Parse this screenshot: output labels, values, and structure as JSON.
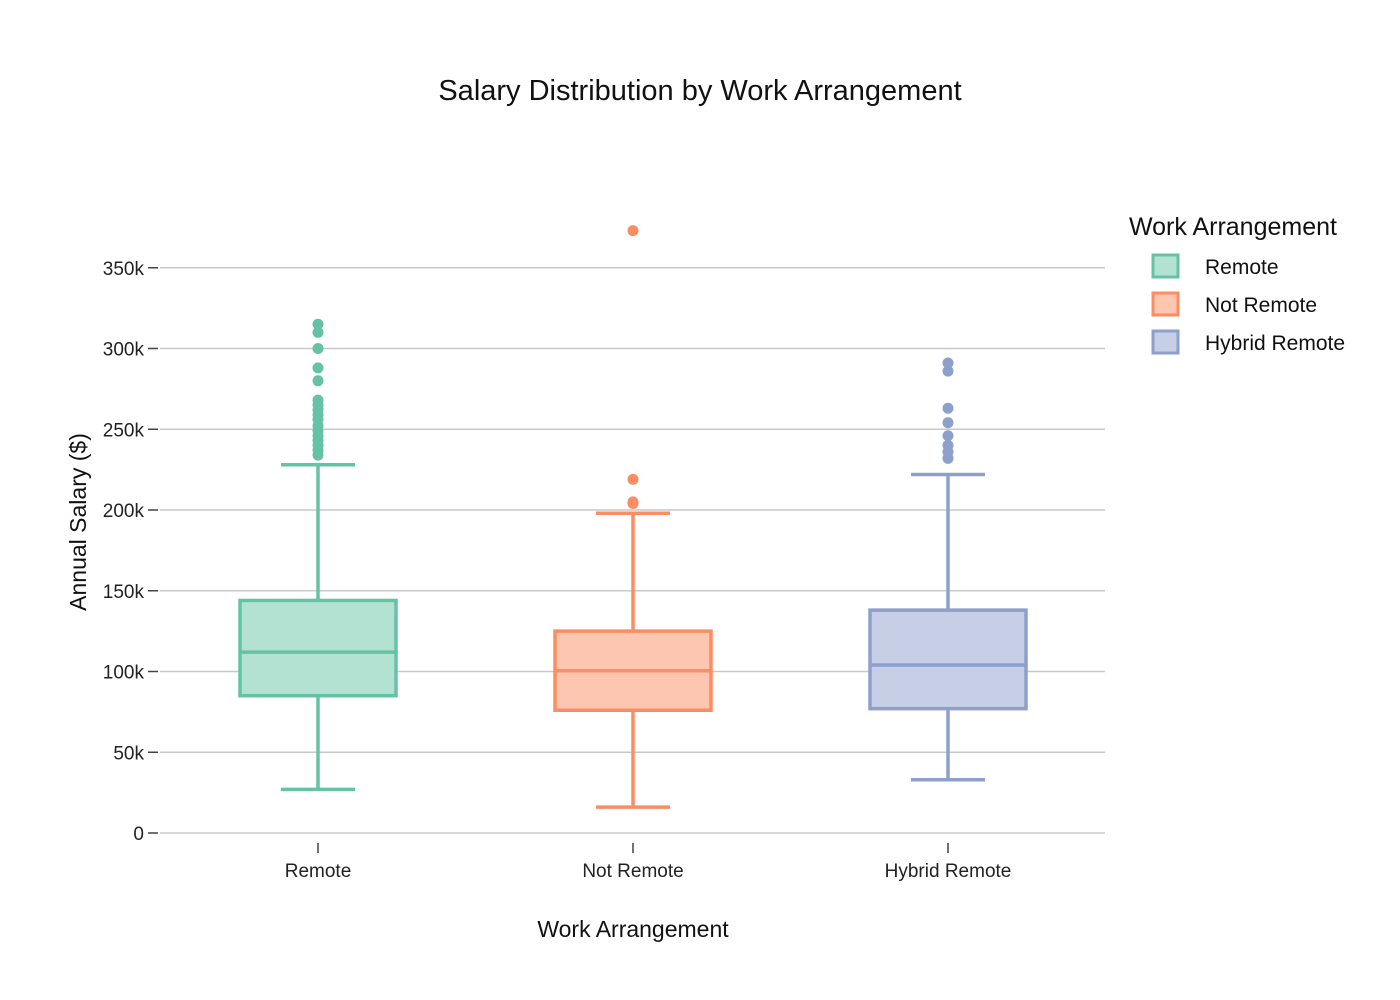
{
  "chart_data": {
    "type": "box",
    "title": "Salary Distribution by Work Arrangement",
    "xlabel": "Work Arrangement",
    "ylabel": "Annual Salary ($)",
    "ylim": [
      0,
      375000
    ],
    "yticks": [
      0,
      50000,
      100000,
      150000,
      200000,
      250000,
      300000,
      350000
    ],
    "ytick_labels": [
      "0",
      "50k",
      "100k",
      "150k",
      "200k",
      "250k",
      "300k",
      "350k"
    ],
    "grid": true,
    "legend": {
      "title": "Work Arrangement",
      "placement": "top-right"
    },
    "categories": [
      "Remote",
      "Not Remote",
      "Hybrid Remote"
    ],
    "series": [
      {
        "name": "Remote",
        "color": "#66c2a5",
        "fill": "#b3e1d2",
        "whisker_low": 27000,
        "q1": 85000,
        "median": 112000,
        "q3": 144000,
        "whisker_high": 228000,
        "outliers": [
          234000,
          237000,
          240000,
          243000,
          246000,
          249000,
          252000,
          256000,
          259000,
          262000,
          265000,
          268000,
          280000,
          288000,
          300000,
          310000,
          315000
        ]
      },
      {
        "name": "Not Remote",
        "color": "#fc8d62",
        "fill": "#fdc6b0",
        "whisker_low": 16000,
        "q1": 76000,
        "median": 100500,
        "q3": 125000,
        "whisker_high": 198000,
        "outliers": [
          204000,
          205000,
          219000,
          373000
        ]
      },
      {
        "name": "Hybrid Remote",
        "color": "#8da0cb",
        "fill": "#c6cfe5",
        "whisker_low": 33000,
        "q1": 77000,
        "median": 104000,
        "q3": 138000,
        "whisker_high": 222000,
        "outliers": [
          232000,
          236000,
          240000,
          246000,
          254000,
          263000,
          286000,
          291000
        ]
      }
    ]
  }
}
